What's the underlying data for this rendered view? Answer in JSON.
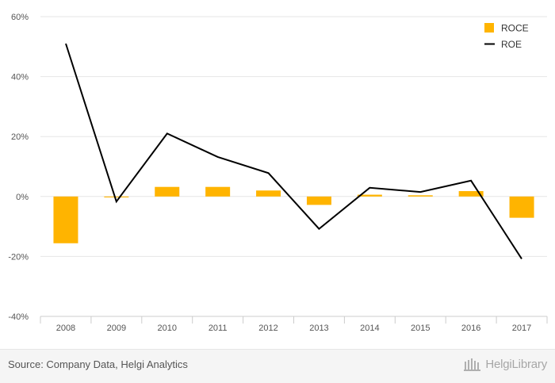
{
  "chart_data": {
    "type": "bar",
    "categories": [
      "2008",
      "2009",
      "2010",
      "2011",
      "2012",
      "2013",
      "2014",
      "2015",
      "2016",
      "2017"
    ],
    "series": [
      {
        "name": "ROCE",
        "type": "bar",
        "color": "#FFB400",
        "values": [
          -15.6,
          -0.3,
          3.2,
          3.2,
          2.0,
          -2.8,
          0.6,
          0.4,
          1.8,
          -7.1
        ]
      },
      {
        "name": "ROE",
        "type": "line",
        "color": "#000000",
        "values": [
          51.0,
          -1.7,
          21.0,
          13.2,
          7.8,
          -10.8,
          2.9,
          1.5,
          5.3,
          -20.8
        ]
      }
    ],
    "ylim": [
      -40,
      60
    ],
    "yticks": [
      "60%",
      "40%",
      "20%",
      "0%",
      "-20%",
      "-40%"
    ],
    "ytick_values": [
      60,
      40,
      20,
      0,
      -20,
      -40
    ],
    "grid": true,
    "legend_position": "top-right"
  },
  "footer": {
    "source": "Source: Company Data, Helgi Analytics",
    "brand": "HelgiLibrary"
  }
}
